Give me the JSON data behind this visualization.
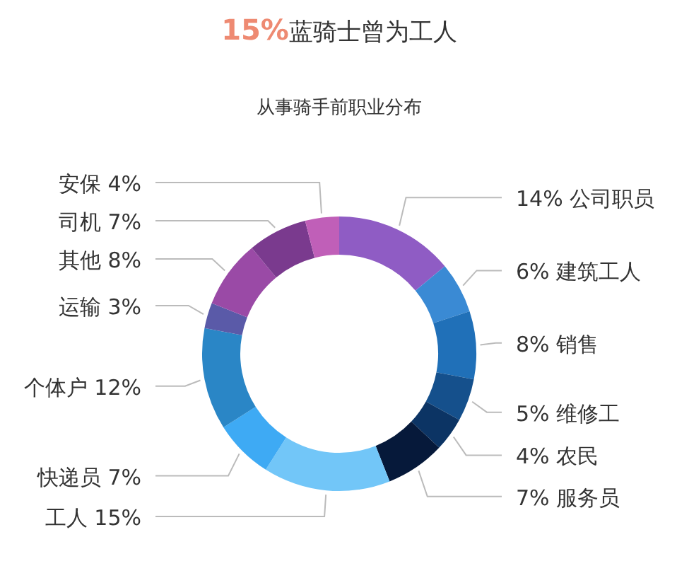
{
  "chart_data": {
    "type": "donut",
    "title": "**15%**蓝骑士曾为工人",
    "subtitle": "从事骑手前职业分布",
    "categories": [
      "公司职员",
      "建筑工人",
      "销售",
      "维修工",
      "农民",
      "服务员",
      "工人",
      "快递员",
      "个体户",
      "运输",
      "其他",
      "司机",
      "安保"
    ],
    "values": [
      14,
      6,
      8,
      5,
      4,
      7,
      15,
      7,
      12,
      3,
      8,
      7,
      4
    ],
    "value_labels": [
      "14%",
      "6%",
      "8%",
      "5%",
      "4%",
      "7%",
      "15%",
      "7%",
      "12%",
      "3%",
      "8%",
      "7%",
      "4%"
    ],
    "colors": [
      "#8f5cc4",
      "#3a8ad4",
      "#2070b8",
      "#15508c",
      "#0c3464",
      "#06193a",
      "#72c6f8",
      "#3eaaf4",
      "#2a86c6",
      "#5a5aa8",
      "#9a4aa6",
      "#7a3a8e",
      "#c05fb8"
    ],
    "data_labels": false,
    "legend": false
  }
}
